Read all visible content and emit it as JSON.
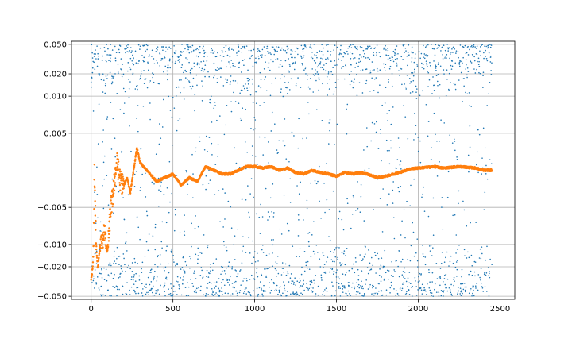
{
  "chart_data": {
    "type": "scatter",
    "title": "",
    "xlabel": "",
    "ylabel": "",
    "xlim": [
      -120,
      2590
    ],
    "ylim": [
      -0.055,
      0.055
    ],
    "y_scale": "symlog",
    "y_linthresh": 0.01,
    "grid": true,
    "x_ticks": [
      0,
      500,
      1000,
      1500,
      2000,
      2500
    ],
    "x_tick_labels": [
      "0",
      "500",
      "1000",
      "1500",
      "2000",
      "2500"
    ],
    "y_ticks": [
      -0.05,
      -0.02,
      -0.01,
      -0.005,
      0.005,
      0.01,
      0.02,
      0.05
    ],
    "y_tick_labels": [
      "−0.050",
      "−0.020",
      "−0.010",
      "−0.005",
      "0.005",
      "0.010",
      "0.020",
      "0.050"
    ],
    "series": [
      {
        "color": "#1f77b4",
        "marker_size": 0.8,
        "count": 2450,
        "distribution": "uniform noise between -0.05 and 0.05",
        "x_range": [
          0,
          2450
        ],
        "y_range": [
          -0.05,
          0.05
        ]
      },
      {
        "color": "#ff7f0e",
        "marker_size": 1.2,
        "count": 2450,
        "description": "running mean of the noise series",
        "x": [
          0,
          10,
          20,
          30,
          40,
          50,
          60,
          70,
          80,
          90,
          100,
          110,
          120,
          130,
          140,
          150,
          160,
          170,
          180,
          200,
          220,
          240,
          260,
          280,
          300,
          320,
          340,
          360,
          380,
          400,
          450,
          500,
          550,
          600,
          650,
          700,
          750,
          800,
          850,
          900,
          950,
          1000,
          1050,
          1100,
          1150,
          1200,
          1250,
          1300,
          1350,
          1400,
          1450,
          1500,
          1550,
          1600,
          1650,
          1700,
          1750,
          1800,
          1850,
          1900,
          1950,
          2000,
          2050,
          2100,
          2150,
          2200,
          2250,
          2300,
          2350,
          2400,
          2450
        ],
        "y": [
          -0.03,
          -0.02,
          0.0,
          -0.01,
          -0.02,
          -0.012,
          -0.01,
          -0.01,
          -0.008,
          -0.01,
          -0.012,
          -0.008,
          -0.005,
          -0.004,
          -0.002,
          0.0,
          0.001,
          -0.0005,
          -0.0015,
          -0.002,
          -0.001,
          -0.003,
          0.0,
          0.003,
          0.001,
          0.0005,
          0.0,
          -0.0005,
          -0.001,
          -0.0015,
          -0.001,
          -0.0005,
          -0.002,
          -0.001,
          -0.0015,
          0.0005,
          0.0,
          -0.0005,
          -0.0005,
          0.0,
          0.0005,
          0.0005,
          0.0003,
          0.0005,
          0.0,
          0.0003,
          -0.0003,
          -0.0005,
          0.0,
          -0.0003,
          -0.0005,
          -0.0008,
          -0.0003,
          -0.0005,
          -0.0003,
          -0.0006,
          -0.001,
          -0.0008,
          -0.0005,
          -0.0002,
          0.0002,
          0.0003,
          0.0004,
          0.0005,
          0.0003,
          0.0004,
          0.0005,
          0.0004,
          0.0003,
          0.0,
          0.0
        ]
      }
    ]
  }
}
